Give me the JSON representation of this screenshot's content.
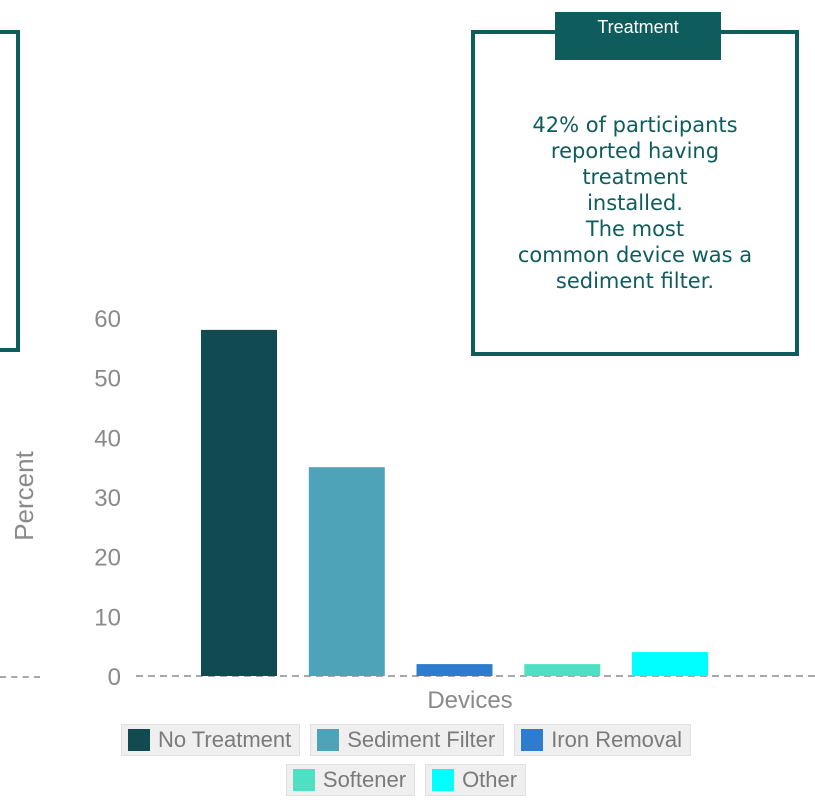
{
  "treatment_box": {
    "title": "Treatment",
    "lines": [
      "42% of participants",
      "reported having",
      "treatment",
      "installed.",
      "The most",
      "common device was a",
      "sediment filter."
    ]
  },
  "chart_data": {
    "type": "bar",
    "title": "",
    "xlabel": "Devices",
    "ylabel": "Percent",
    "ylim": [
      0,
      60
    ],
    "yticks": [
      0,
      10,
      20,
      30,
      40,
      50,
      60
    ],
    "grid": false,
    "legend_position": "bottom",
    "categories": [
      "No Treatment",
      "Sediment Filter",
      "Iron Removal",
      "Softener",
      "Other"
    ],
    "values": [
      58,
      35,
      2,
      2,
      4
    ],
    "colors": [
      "#124a52",
      "#4ea3b8",
      "#2e7ccf",
      "#4fe0c4",
      "#00ffff"
    ]
  }
}
